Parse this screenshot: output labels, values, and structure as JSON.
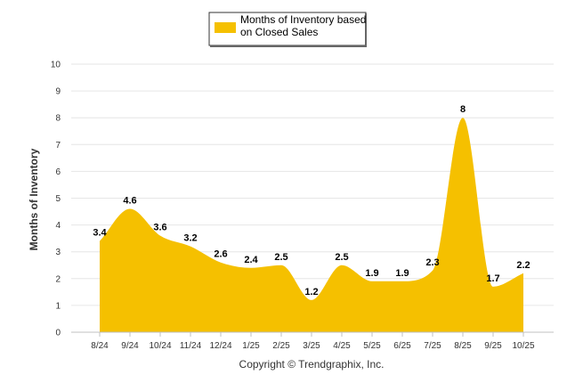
{
  "chart_data": {
    "type": "area",
    "categories": [
      "8/24",
      "9/24",
      "10/24",
      "11/24",
      "12/24",
      "1/25",
      "2/25",
      "3/25",
      "4/25",
      "5/25",
      "6/25",
      "7/25",
      "8/25",
      "9/25",
      "10/25"
    ],
    "series": [
      {
        "name": "Months of Inventory based on Closed Sales",
        "values": [
          3.4,
          4.6,
          3.6,
          3.2,
          2.6,
          2.4,
          2.5,
          1.2,
          2.5,
          1.9,
          1.9,
          2.3,
          8,
          1.7,
          2.2
        ],
        "color": "#f5c000"
      }
    ],
    "legend_lines": [
      "Months of Inventory based",
      "on Closed Sales"
    ],
    "ylabel": "Months of Inventory",
    "ylim": [
      0,
      10
    ],
    "yticks": [
      0,
      1,
      2,
      3,
      4,
      5,
      6,
      7,
      8,
      9,
      10
    ],
    "grid": true,
    "legend_position": "top-center",
    "footer": "Copyright © Trendgraphix, Inc."
  }
}
